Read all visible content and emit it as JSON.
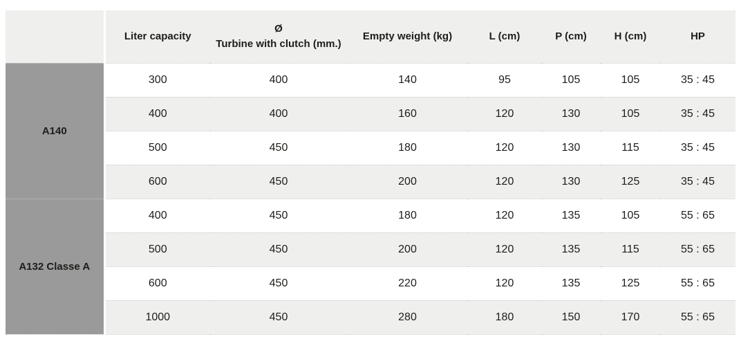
{
  "chart_data": {
    "type": "table",
    "columns": [
      "",
      "Liter capacity",
      "Ø Turbine with clutch (mm.)",
      "Empty weight (kg)",
      "L (cm)",
      "P (cm)",
      "H (cm)",
      "HP"
    ],
    "header": {
      "model": "",
      "liter_capacity": "Liter capacity",
      "turbine_symbol": "Ø",
      "turbine_label": "Turbine with clutch (mm.)",
      "empty_weight": "Empty weight (kg)",
      "l": "L (cm)",
      "p": "P (cm)",
      "h": "H (cm)",
      "hp": "HP"
    },
    "groups": [
      {
        "name": "A140",
        "rows": [
          [
            300,
            400,
            140,
            95,
            105,
            105,
            "35 : 45"
          ],
          [
            400,
            400,
            160,
            120,
            130,
            105,
            "35 : 45"
          ],
          [
            500,
            450,
            180,
            120,
            130,
            115,
            "35 : 45"
          ],
          [
            600,
            450,
            200,
            120,
            130,
            125,
            "35 : 45"
          ]
        ]
      },
      {
        "name": "A132 Classe A",
        "rows": [
          [
            400,
            450,
            180,
            120,
            135,
            105,
            "55 : 65"
          ],
          [
            500,
            450,
            200,
            120,
            135,
            115,
            "55 : 65"
          ],
          [
            600,
            450,
            220,
            120,
            135,
            125,
            "55 : 65"
          ],
          [
            1000,
            450,
            280,
            180,
            150,
            170,
            "55 : 65"
          ]
        ]
      }
    ]
  },
  "colors": {
    "header_bg": "#efefee",
    "alt_row_bg": "#efefee",
    "group_cell_bg": "#9a9a9a",
    "row_border": "#c9c9c9",
    "text": "#1d1d1b"
  }
}
